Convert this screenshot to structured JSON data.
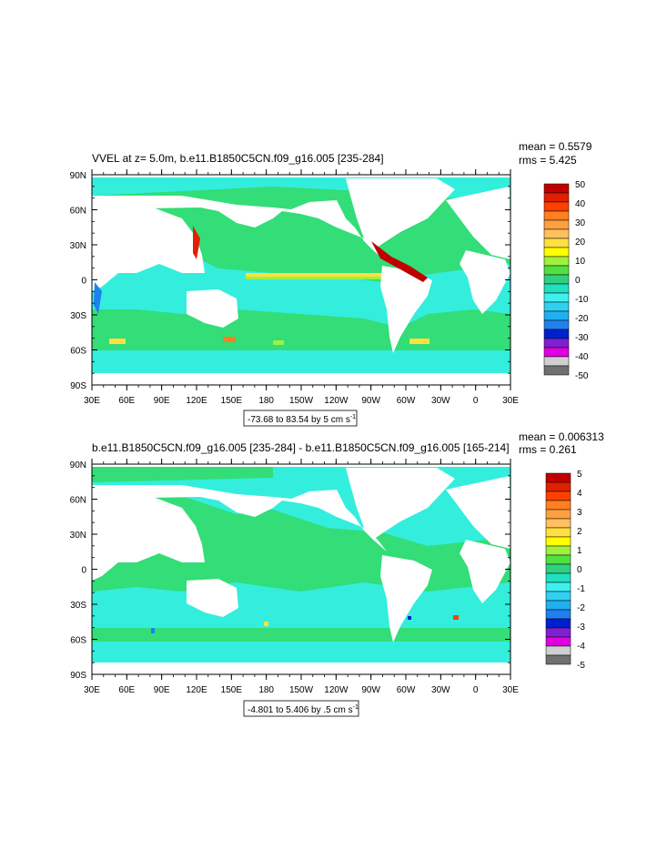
{
  "panels": [
    {
      "title": "VVEL at z=   5.0m, b.e11.B1850C5CN.f09_g16.005 [235-284]",
      "stats": {
        "mean": "mean = 0.5579",
        "rms": "rms = 5.425"
      },
      "range_text": "-73.68 to 83.54 by 5 cm s",
      "range_sup": "-1",
      "lat_labels": [
        "90N",
        "60N",
        "30N",
        "0",
        "30S",
        "60S",
        "90S"
      ],
      "lon_labels": [
        "30E",
        "60E",
        "90E",
        "120E",
        "150E",
        "180",
        "150W",
        "120W",
        "90W",
        "60W",
        "30W",
        "0",
        "30E"
      ],
      "colorbar_labels": [
        "50",
        "40",
        "30",
        "20",
        "10",
        "0",
        "-10",
        "-20",
        "-30",
        "-40",
        "-50"
      ]
    },
    {
      "title": "b.e11.B1850C5CN.f09_g16.005 [235-284] - b.e11.B1850C5CN.f09_g16.005 [165-214]",
      "stats": {
        "mean": "mean = 0.006313",
        "rms": "rms = 0.261"
      },
      "range_text": "-4.801 to 5.406 by .5 cm s",
      "range_sup": "-1",
      "lat_labels": [
        "90N",
        "60N",
        "30N",
        "0",
        "30S",
        "60S",
        "90S"
      ],
      "lon_labels": [
        "30E",
        "60E",
        "90E",
        "120E",
        "150E",
        "180",
        "150W",
        "120W",
        "90W",
        "60W",
        "30W",
        "0",
        "30E"
      ],
      "colorbar_labels": [
        "5",
        "4",
        "3",
        "2",
        "1",
        "0",
        "-1",
        "-2",
        "-3",
        "-4",
        "-5"
      ]
    }
  ],
  "colors": {
    "palette": [
      "#c00000",
      "#e02000",
      "#ff4000",
      "#ff8020",
      "#ffa040",
      "#ffc060",
      "#ffe040",
      "#ffff00",
      "#a0f040",
      "#50e040",
      "#30d080",
      "#20e0c0",
      "#40f0f0",
      "#30d0f0",
      "#20b0f0",
      "#2080f0",
      "#0020d0",
      "#8020d0",
      "#e000e0",
      "#d0d0d0",
      "#707070"
    ],
    "ocean_main": "#33dd77",
    "ocean_band": "#33eedd",
    "land": "#ffffff"
  }
}
